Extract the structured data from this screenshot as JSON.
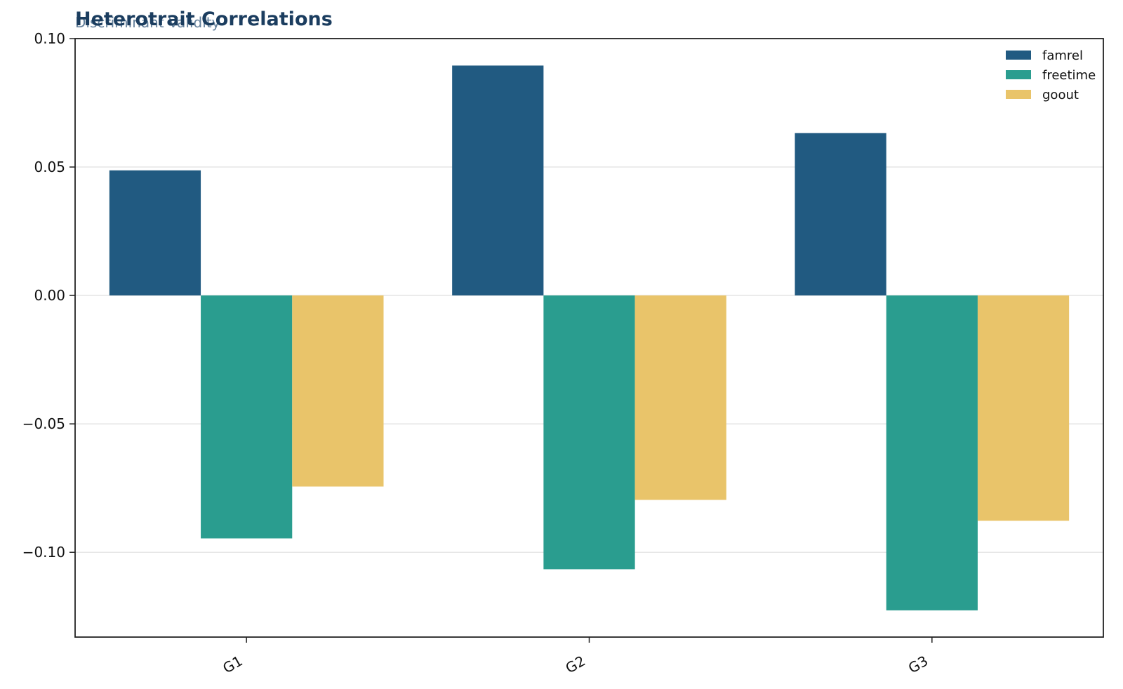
{
  "chart_data": {
    "type": "bar",
    "title": "Heterotrait Correlations",
    "subtitle": "Discriminant Validity",
    "xlabel": "",
    "ylabel": "",
    "categories": [
      "G1",
      "G2",
      "G3"
    ],
    "series": [
      {
        "name": "famrel",
        "color": "#215a81",
        "values": [
          0.0487,
          0.0895,
          0.0632
        ]
      },
      {
        "name": "freetime",
        "color": "#2a9d8f",
        "values": [
          -0.0946,
          -0.1066,
          -0.1226
        ]
      },
      {
        "name": "goout",
        "color": "#e9c46a",
        "values": [
          -0.0744,
          -0.0796,
          -0.0877
        ]
      }
    ],
    "ylim": [
      -0.133,
      0.1
    ],
    "yticks": [
      0.1,
      0.05,
      0.0,
      -0.05,
      -0.1
    ],
    "ytick_labels": [
      "0.10",
      "0.05",
      "0.00",
      "−0.05",
      "−0.10"
    ],
    "grid": "horizontal",
    "legend_position": "top-right"
  }
}
